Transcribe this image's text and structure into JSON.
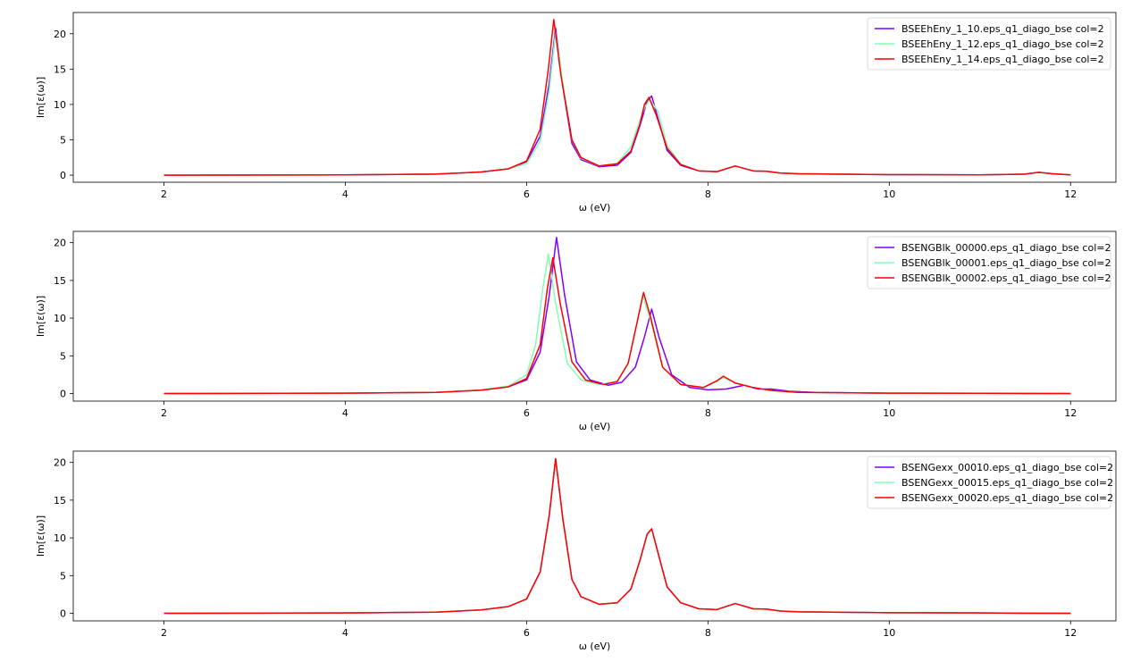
{
  "chart_data": [
    {
      "type": "line",
      "xlabel": "ω (eV)",
      "ylabel": "Im[ε(ω)]",
      "xlim": [
        1.0,
        12.5
      ],
      "ylim": [
        -1.0,
        23.0
      ],
      "xticks": [
        2,
        4,
        6,
        8,
        10,
        12
      ],
      "yticks": [
        0,
        5,
        10,
        15,
        20
      ],
      "legend_position": "top-right",
      "series": [
        {
          "name": "BSEEhEny_1_10.eps_q1_diago_bse col=2",
          "color": "#8000ff",
          "x": [
            2.0,
            4.0,
            5.0,
            5.5,
            5.8,
            6.0,
            6.15,
            6.25,
            6.32,
            6.4,
            6.5,
            6.6,
            6.8,
            7.0,
            7.15,
            7.25,
            7.33,
            7.38,
            7.45,
            7.55,
            7.7,
            7.9,
            8.1,
            8.3,
            8.5,
            8.65,
            8.8,
            9.0,
            10.0,
            11.0,
            11.5,
            11.65,
            11.8,
            12.0
          ],
          "y": [
            0.0,
            0.05,
            0.15,
            0.45,
            0.9,
            1.9,
            5.5,
            13.0,
            20.8,
            12.5,
            4.5,
            2.2,
            1.2,
            1.4,
            3.2,
            7.0,
            10.5,
            11.2,
            8.0,
            3.5,
            1.4,
            0.6,
            0.5,
            1.3,
            0.6,
            0.55,
            0.3,
            0.2,
            0.08,
            0.05,
            0.15,
            0.4,
            0.2,
            0.05
          ]
        },
        {
          "name": "BSEEhEny_1_12.eps_q1_diago_bse col=2",
          "color": "#80ffb4",
          "x": [
            2.0,
            4.0,
            5.0,
            5.5,
            5.8,
            6.0,
            6.15,
            6.25,
            6.32,
            6.4,
            6.5,
            6.6,
            6.8,
            7.0,
            7.15,
            7.25,
            7.3,
            7.36,
            7.45,
            7.55,
            7.7,
            7.9,
            8.1,
            8.3,
            8.5,
            8.65,
            8.8,
            9.0,
            10.0,
            11.0,
            11.5,
            11.65,
            11.8,
            12.0
          ],
          "y": [
            0.0,
            0.05,
            0.15,
            0.45,
            0.9,
            1.6,
            4.8,
            12.0,
            20.2,
            13.0,
            5.0,
            2.4,
            1.3,
            1.7,
            4.0,
            7.8,
            9.5,
            10.7,
            9.0,
            4.2,
            1.6,
            0.6,
            0.5,
            1.3,
            0.6,
            0.55,
            0.3,
            0.2,
            0.08,
            0.05,
            0.15,
            0.4,
            0.2,
            0.05
          ]
        },
        {
          "name": "BSEEhEny_1_14.eps_q1_diago_bse col=2",
          "color": "#ff0000",
          "x": [
            2.0,
            4.0,
            5.0,
            5.5,
            5.8,
            6.0,
            6.15,
            6.24,
            6.3,
            6.38,
            6.5,
            6.6,
            6.8,
            7.0,
            7.15,
            7.25,
            7.3,
            7.35,
            7.43,
            7.55,
            7.7,
            7.9,
            8.1,
            8.3,
            8.5,
            8.65,
            8.8,
            9.0,
            10.0,
            11.0,
            11.5,
            11.65,
            11.8,
            12.0
          ],
          "y": [
            0.0,
            0.05,
            0.15,
            0.45,
            0.9,
            2.0,
            6.5,
            15.0,
            22.0,
            14.0,
            5.0,
            2.5,
            1.3,
            1.6,
            3.4,
            7.2,
            10.0,
            11.0,
            8.5,
            3.8,
            1.5,
            0.6,
            0.5,
            1.3,
            0.6,
            0.55,
            0.3,
            0.2,
            0.08,
            0.05,
            0.15,
            0.4,
            0.2,
            0.05
          ]
        }
      ]
    },
    {
      "type": "line",
      "xlabel": "ω (eV)",
      "ylabel": "Im[ε(ω)]",
      "xlim": [
        1.0,
        12.5
      ],
      "ylim": [
        -1.0,
        21.5
      ],
      "xticks": [
        2,
        4,
        6,
        8,
        10,
        12
      ],
      "yticks": [
        0,
        5,
        10,
        15,
        20
      ],
      "legend_position": "top-right",
      "series": [
        {
          "name": "BSENGBlk_00000.eps_q1_diago_bse col=2",
          "color": "#8000ff",
          "x": [
            2.0,
            4.0,
            5.0,
            5.5,
            5.8,
            6.0,
            6.15,
            6.25,
            6.33,
            6.42,
            6.55,
            6.7,
            6.9,
            7.05,
            7.2,
            7.3,
            7.38,
            7.46,
            7.6,
            7.8,
            8.0,
            8.2,
            8.4,
            8.55,
            8.7,
            8.9,
            9.2,
            10.0,
            11.0,
            12.0
          ],
          "y": [
            0.0,
            0.05,
            0.15,
            0.45,
            0.9,
            1.8,
            5.5,
            13.0,
            20.7,
            13.0,
            4.2,
            1.8,
            1.1,
            1.5,
            3.5,
            7.5,
            11.2,
            7.5,
            2.5,
            0.8,
            0.5,
            0.6,
            1.1,
            0.6,
            0.6,
            0.3,
            0.15,
            0.05,
            0.03,
            0.0
          ]
        },
        {
          "name": "BSENGBlk_00001.eps_q1_diago_bse col=2",
          "color": "#80ffb4",
          "x": [
            2.0,
            4.0,
            5.0,
            5.5,
            5.8,
            6.0,
            6.1,
            6.18,
            6.24,
            6.32,
            6.45,
            6.6,
            6.8,
            7.0,
            7.12,
            7.22,
            7.28,
            7.36,
            7.5,
            7.7,
            7.95,
            8.1,
            8.17,
            8.3,
            8.5,
            8.7,
            9.0,
            10.0,
            11.0,
            12.0
          ],
          "y": [
            0.0,
            0.05,
            0.15,
            0.5,
            1.0,
            2.5,
            6.5,
            14.0,
            18.5,
            12.0,
            4.0,
            1.8,
            1.2,
            1.6,
            4.0,
            9.5,
            13.0,
            10.0,
            3.5,
            1.2,
            0.8,
            1.6,
            2.1,
            1.4,
            0.8,
            0.4,
            0.15,
            0.05,
            0.03,
            0.0
          ]
        },
        {
          "name": "BSENGBlk_00002.eps_q1_diago_bse col=2",
          "color": "#ff0000",
          "x": [
            2.0,
            4.0,
            5.0,
            5.5,
            5.8,
            6.0,
            6.15,
            6.23,
            6.29,
            6.37,
            6.5,
            6.65,
            6.85,
            7.0,
            7.12,
            7.22,
            7.29,
            7.37,
            7.5,
            7.7,
            7.95,
            8.1,
            8.17,
            8.3,
            8.5,
            8.7,
            9.0,
            10.0,
            11.0,
            12.0
          ],
          "y": [
            0.0,
            0.05,
            0.15,
            0.45,
            0.9,
            2.0,
            6.5,
            14.0,
            18.0,
            12.0,
            4.2,
            1.8,
            1.2,
            1.6,
            4.0,
            9.5,
            13.4,
            10.0,
            3.5,
            1.2,
            0.8,
            1.7,
            2.3,
            1.4,
            0.8,
            0.4,
            0.15,
            0.05,
            0.03,
            0.0
          ]
        }
      ]
    },
    {
      "type": "line",
      "xlabel": "ω (eV)",
      "ylabel": "Im[ε(ω)]",
      "xlim": [
        1.0,
        12.5
      ],
      "ylim": [
        -1.0,
        21.5
      ],
      "xticks": [
        2,
        4,
        6,
        8,
        10,
        12
      ],
      "yticks": [
        0,
        5,
        10,
        15,
        20
      ],
      "legend_position": "top-right",
      "series": [
        {
          "name": "BSENGexx_00010.eps_q1_diago_bse col=2",
          "color": "#8000ff",
          "x": [
            2.0,
            4.0,
            5.0,
            5.5,
            5.8,
            6.0,
            6.15,
            6.25,
            6.32,
            6.4,
            6.5,
            6.6,
            6.8,
            7.0,
            7.15,
            7.25,
            7.33,
            7.38,
            7.45,
            7.55,
            7.7,
            7.9,
            8.1,
            8.3,
            8.5,
            8.65,
            8.8,
            9.0,
            10.0,
            11.0,
            12.0
          ],
          "y": [
            0.0,
            0.05,
            0.15,
            0.45,
            0.9,
            1.9,
            5.5,
            13.0,
            20.5,
            12.5,
            4.5,
            2.2,
            1.2,
            1.4,
            3.2,
            7.0,
            10.5,
            11.2,
            8.0,
            3.5,
            1.4,
            0.6,
            0.5,
            1.3,
            0.6,
            0.55,
            0.3,
            0.2,
            0.08,
            0.05,
            0.0
          ]
        },
        {
          "name": "BSENGexx_00015.eps_q1_diago_bse col=2",
          "color": "#80ffb4",
          "x": [
            2.0,
            4.0,
            5.0,
            5.5,
            5.8,
            6.0,
            6.15,
            6.25,
            6.32,
            6.4,
            6.5,
            6.6,
            6.8,
            7.0,
            7.15,
            7.25,
            7.33,
            7.38,
            7.45,
            7.55,
            7.7,
            7.9,
            8.1,
            8.3,
            8.5,
            8.65,
            8.8,
            9.0,
            10.0,
            11.0,
            12.0
          ],
          "y": [
            0.0,
            0.05,
            0.15,
            0.45,
            0.9,
            1.9,
            5.5,
            13.0,
            20.5,
            12.5,
            4.5,
            2.2,
            1.2,
            1.4,
            3.2,
            7.0,
            10.5,
            11.2,
            8.0,
            3.5,
            1.4,
            0.6,
            0.5,
            1.3,
            0.6,
            0.55,
            0.3,
            0.2,
            0.08,
            0.05,
            0.0
          ]
        },
        {
          "name": "BSENGexx_00020.eps_q1_diago_bse col=2",
          "color": "#ff0000",
          "x": [
            2.0,
            4.0,
            5.0,
            5.5,
            5.8,
            6.0,
            6.15,
            6.25,
            6.32,
            6.4,
            6.5,
            6.6,
            6.8,
            7.0,
            7.15,
            7.25,
            7.33,
            7.38,
            7.45,
            7.55,
            7.7,
            7.9,
            8.1,
            8.3,
            8.5,
            8.65,
            8.8,
            9.0,
            10.0,
            11.0,
            12.0
          ],
          "y": [
            0.0,
            0.05,
            0.15,
            0.45,
            0.9,
            1.9,
            5.5,
            13.0,
            20.5,
            12.5,
            4.5,
            2.2,
            1.2,
            1.4,
            3.2,
            7.0,
            10.5,
            11.2,
            8.0,
            3.5,
            1.4,
            0.6,
            0.5,
            1.3,
            0.6,
            0.55,
            0.3,
            0.2,
            0.08,
            0.05,
            0.0
          ]
        }
      ]
    }
  ]
}
